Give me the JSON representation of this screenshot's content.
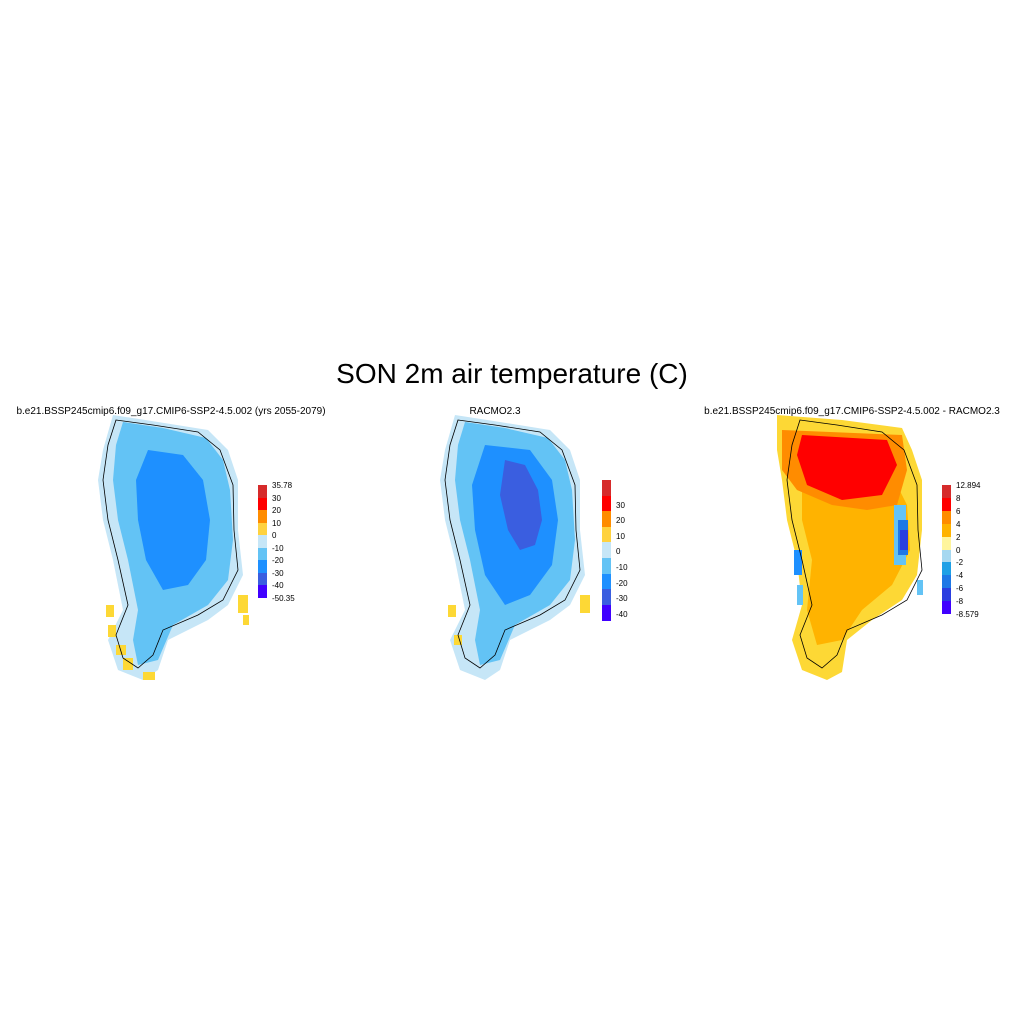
{
  "title": "SON 2m air temperature (C)",
  "panels": [
    {
      "title": "b.e21.BSSP245cmip6.f09_g17.CMIP6-SSP2-4.5.002 (yrs 2055-2079)",
      "colorbar": {
        "labels": [
          "35.78",
          "30",
          "20",
          "10",
          "0",
          "-10",
          "-20",
          "-30",
          "-40",
          "-50.35"
        ],
        "colors": [
          "#d62b2b",
          "#ff0000",
          "#ff8c00",
          "#ffd23f",
          "#c6e6f7",
          "#63c3f5",
          "#1e90ff",
          "#3a5ee0",
          "#4000ff"
        ]
      },
      "regions": [
        "#fdd835",
        "#c6e6f7",
        "#63c3f5",
        "#1e90ff"
      ]
    },
    {
      "title": "RACMO2.3",
      "colorbar": {
        "labels": [
          "30",
          "20",
          "10",
          "0",
          "-10",
          "-20",
          "-30",
          "-40"
        ],
        "colors": [
          "#d62b2b",
          "#ff0000",
          "#ff8c00",
          "#ffd23f",
          "#c6e6f7",
          "#63c3f5",
          "#1e90ff",
          "#3a5ee0",
          "#4000ff"
        ]
      },
      "regions": [
        "#fdd835",
        "#c6e6f7",
        "#63c3f5",
        "#1e90ff",
        "#3a5ee0"
      ]
    },
    {
      "title": "b.e21.BSSP245cmip6.f09_g17.CMIP6-SSP2-4.5.002 - RACMO2.3",
      "colorbar": {
        "labels": [
          "12.894",
          "8",
          "6",
          "4",
          "2",
          "0",
          "-2",
          "-4",
          "-6",
          "-8",
          "-8.579"
        ],
        "colors": [
          "#d62b2b",
          "#ff0000",
          "#ff8c00",
          "#ffb300",
          "#fff59d",
          "#a6d8f0",
          "#1ea0e6",
          "#1e78e6",
          "#2a3ee0",
          "#4000ff"
        ]
      },
      "regions": [
        "#fdd835",
        "#ffb300",
        "#ff8c00",
        "#ff0000",
        "#1e90ff",
        "#63c3f5"
      ]
    }
  ]
}
